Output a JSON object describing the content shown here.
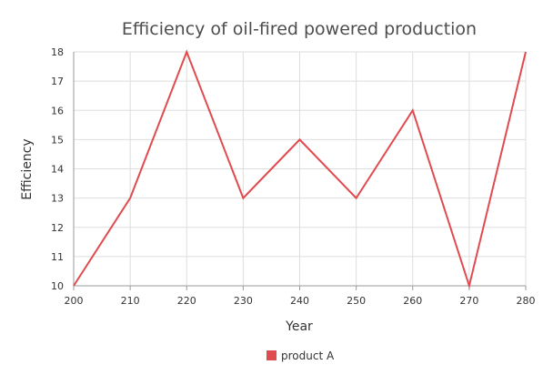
{
  "chart_data": {
    "type": "line",
    "title": "Efficiency of oil-fired powered production",
    "xlabel": "Year",
    "ylabel": "Efficiency",
    "x": [
      200,
      210,
      220,
      230,
      240,
      250,
      260,
      270,
      280
    ],
    "xlim": [
      200,
      280
    ],
    "ylim": [
      10,
      18
    ],
    "x_ticks": [
      "200",
      "210",
      "220",
      "230",
      "240",
      "250",
      "260",
      "270",
      "280"
    ],
    "y_ticks": [
      "10",
      "11",
      "12",
      "13",
      "14",
      "15",
      "16",
      "17",
      "18"
    ],
    "series": [
      {
        "name": "product A",
        "color": "#e04b4f",
        "values": [
          10,
          13,
          18,
          13,
          15,
          13,
          16,
          10,
          18
        ]
      }
    ],
    "grid": true,
    "legend": "bottom-center"
  }
}
